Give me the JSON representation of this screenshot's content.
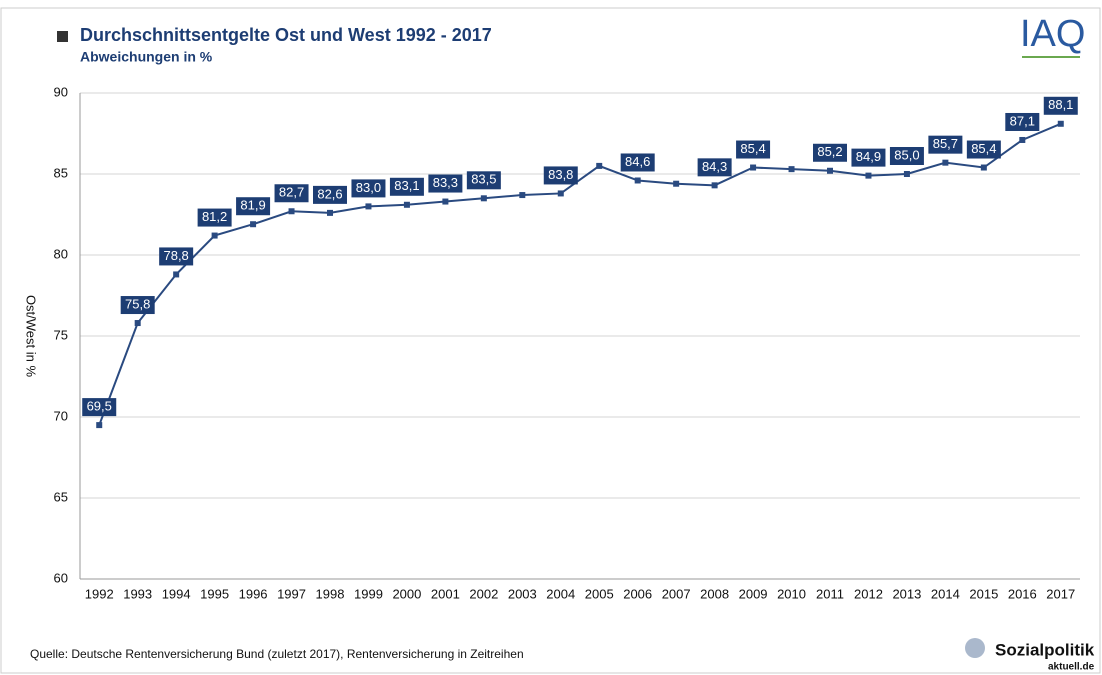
{
  "chart_data": {
    "type": "line",
    "title": "Durchschnittsentgelte Ost und West 1992 - 2017",
    "subtitle": "Abweichungen in %",
    "y_label": "Ost/West in %",
    "source": "Quelle: Deutsche Rentenversicherung Bund (zuletzt 2017), Rentenversicherung in Zeitreihen",
    "logo_top": "IAQ",
    "logo_bottom": "Sozialpolitik",
    "logo_bottom_sub": "aktuell.de",
    "categories": [
      "1992",
      "1993",
      "1994",
      "1995",
      "1996",
      "1997",
      "1998",
      "1999",
      "2000",
      "2001",
      "2002",
      "2003",
      "2004",
      "2005",
      "2006",
      "2007",
      "2008",
      "2009",
      "2010",
      "2011",
      "2012",
      "2013",
      "2014",
      "2015",
      "2016",
      "2017"
    ],
    "values": [
      69.5,
      75.8,
      78.8,
      81.2,
      81.9,
      82.7,
      82.6,
      83.0,
      83.1,
      83.3,
      83.5,
      83.7,
      83.8,
      85.5,
      84.6,
      84.4,
      84.3,
      85.4,
      85.3,
      85.2,
      84.9,
      85.0,
      85.7,
      85.4,
      87.1,
      88.1
    ],
    "value_labels": [
      "69,5",
      "75,8",
      "78,8",
      "81,2",
      "81,9",
      "82,7",
      "82,6",
      "83,0",
      "83,1",
      "83,3",
      "83,5",
      null,
      "83,8",
      null,
      "84,6",
      null,
      "84,3",
      "85,4",
      null,
      "85,2",
      "84,9",
      "85,0",
      "85,7",
      "85,4",
      "87,1",
      "88,1"
    ],
    "color": "#2a4a80",
    "label_color": "#1d3d73",
    "ylim": [
      60,
      90
    ],
    "yticks": [
      60,
      65,
      70,
      75,
      80,
      85,
      90
    ],
    "grid": true
  }
}
